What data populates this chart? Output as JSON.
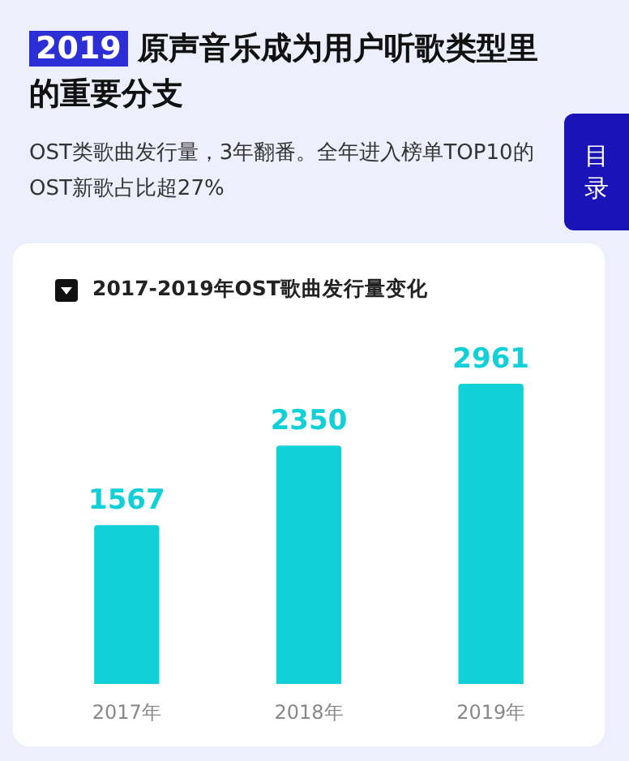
{
  "chart_data": {
    "type": "bar",
    "title": "2019 原声音乐成为用户听歌类型里的重要分支",
    "subtitle": "OST类歌曲发行量，3年翻番。全年进入榜单TOP10的OST新歌占比超27%",
    "annotations": [
      "2017-2019年OST歌曲发行量变化",
      "目录"
    ],
    "categories": [
      "2017年",
      "2018年",
      "2019年"
    ],
    "values": [
      1567,
      2350,
      2961
    ],
    "color": "#12d0d8",
    "data_labels": true
  }
}
